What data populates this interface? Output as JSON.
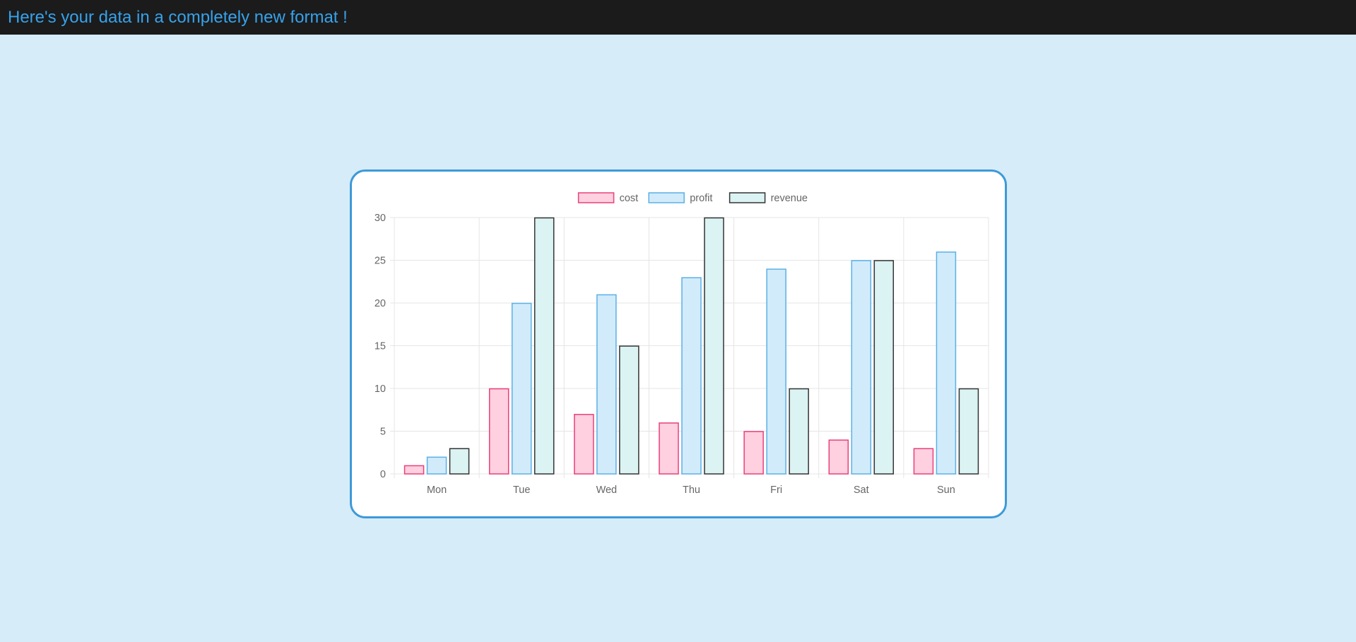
{
  "header": {
    "title": "Here's your data in a completely new format !"
  },
  "colors": {
    "background": "#d6ecf8",
    "header_bg": "#1b1b1b",
    "header_text": "#36a2eb",
    "card_border": "#3d9ad8"
  },
  "chart_data": {
    "type": "bar",
    "categories": [
      "Mon",
      "Tue",
      "Wed",
      "Thu",
      "Fri",
      "Sat",
      "Sun"
    ],
    "series": [
      {
        "name": "cost",
        "values": [
          1,
          10,
          7,
          6,
          5,
          4,
          3
        ],
        "fill": "#ffd0e0",
        "stroke": "#e8407a"
      },
      {
        "name": "profit",
        "values": [
          2,
          20,
          21,
          23,
          24,
          25,
          26
        ],
        "fill": "#d2ebfb",
        "stroke": "#5ab0e6"
      },
      {
        "name": "revenue",
        "values": [
          3,
          30,
          15,
          30,
          10,
          25,
          10
        ],
        "fill": "#dbf3f2",
        "stroke": "#333333"
      }
    ],
    "ylim": [
      0,
      30
    ],
    "yticks": [
      0,
      5,
      10,
      15,
      20,
      25,
      30
    ],
    "grid": true,
    "legend": "top-center",
    "title": "",
    "xlabel": "",
    "ylabel": ""
  }
}
